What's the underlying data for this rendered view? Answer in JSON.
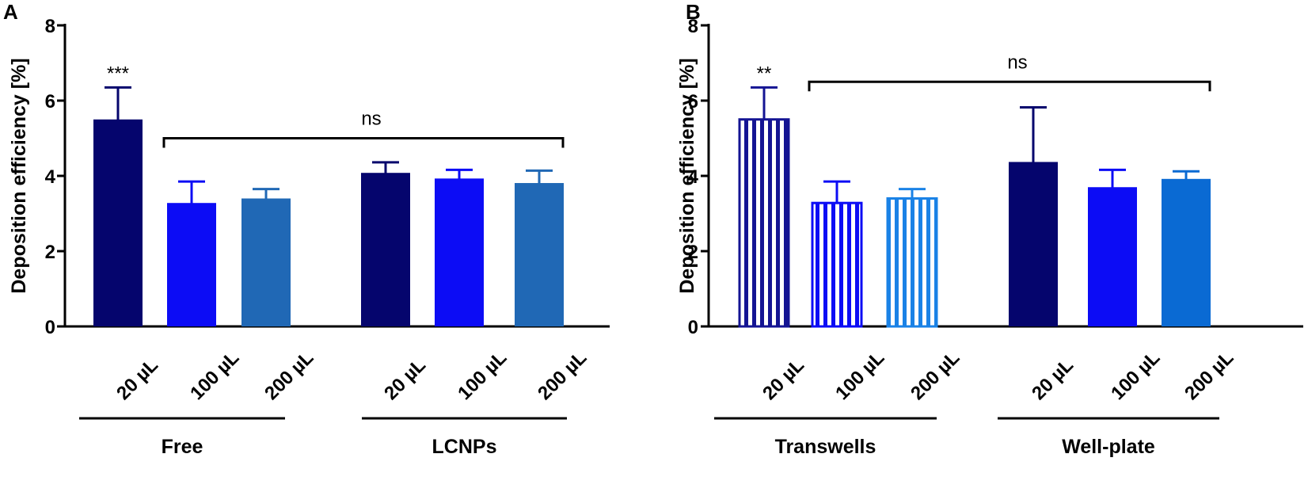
{
  "chart_data": [
    {
      "panel": "A",
      "type": "bar",
      "ylabel": "Deposition efficiency [%]",
      "ylim": [
        0,
        8
      ],
      "yticks": [
        "0",
        "2",
        "4",
        "6",
        "8"
      ],
      "groups": [
        {
          "name": "Free",
          "bars": [
            {
              "label": "20 µL",
              "value": 5.5,
              "error": 0.85,
              "color": "#05056d",
              "pattern": "solid"
            },
            {
              "label": "100 µL",
              "value": 3.28,
              "error": 0.57,
              "color": "#0c0cf5",
              "pattern": "solid"
            },
            {
              "label": "200 µL",
              "value": 3.4,
              "error": 0.25,
              "color": "#2068b5",
              "pattern": "solid"
            }
          ]
        },
        {
          "name": "LCNPs",
          "bars": [
            {
              "label": "20 µL",
              "value": 4.08,
              "error": 0.28,
              "color": "#05056d",
              "pattern": "solid"
            },
            {
              "label": "100 µL",
              "value": 3.93,
              "error": 0.23,
              "color": "#0c0cf5",
              "pattern": "solid"
            },
            {
              "label": "200 µL",
              "value": 3.81,
              "error": 0.33,
              "color": "#2068b5",
              "pattern": "solid"
            }
          ]
        }
      ],
      "annotations": [
        {
          "text": "***",
          "group": 0,
          "bar": 0
        }
      ],
      "bracket": {
        "text": "ns",
        "from_group": 0,
        "from_bar": 1,
        "to_group": 1,
        "to_bar": 2,
        "y": 5.0
      }
    },
    {
      "panel": "B",
      "type": "bar",
      "ylabel": "Deposition efficiency [%]",
      "ylim": [
        0,
        8
      ],
      "yticks": [
        "0",
        "2",
        "4",
        "6",
        "8"
      ],
      "groups": [
        {
          "name": "Transwells",
          "bars": [
            {
              "label": "20 µL",
              "value": 5.5,
              "error": 0.85,
              "color": "#141493",
              "pattern": "striped"
            },
            {
              "label": "100 µL",
              "value": 3.28,
              "error": 0.57,
              "color": "#0c0cf5",
              "pattern": "striped"
            },
            {
              "label": "200 µL",
              "value": 3.4,
              "error": 0.25,
              "color": "#1a82e6",
              "pattern": "striped"
            }
          ]
        },
        {
          "name": "Well-plate",
          "bars": [
            {
              "label": "20 µL",
              "value": 4.37,
              "error": 1.45,
              "color": "#05056d",
              "pattern": "solid"
            },
            {
              "label": "100 µL",
              "value": 3.7,
              "error": 0.46,
              "color": "#0c0cf5",
              "pattern": "solid"
            },
            {
              "label": "200 µL",
              "value": 3.92,
              "error": 0.2,
              "color": "#0a6ad3",
              "pattern": "solid"
            }
          ]
        }
      ],
      "annotations": [
        {
          "text": "**",
          "group": 0,
          "bar": 0
        }
      ],
      "bracket": {
        "text": "ns",
        "from_group": 0,
        "from_bar": 1,
        "to_group": 1,
        "to_bar": 2,
        "y": 6.5
      }
    }
  ]
}
